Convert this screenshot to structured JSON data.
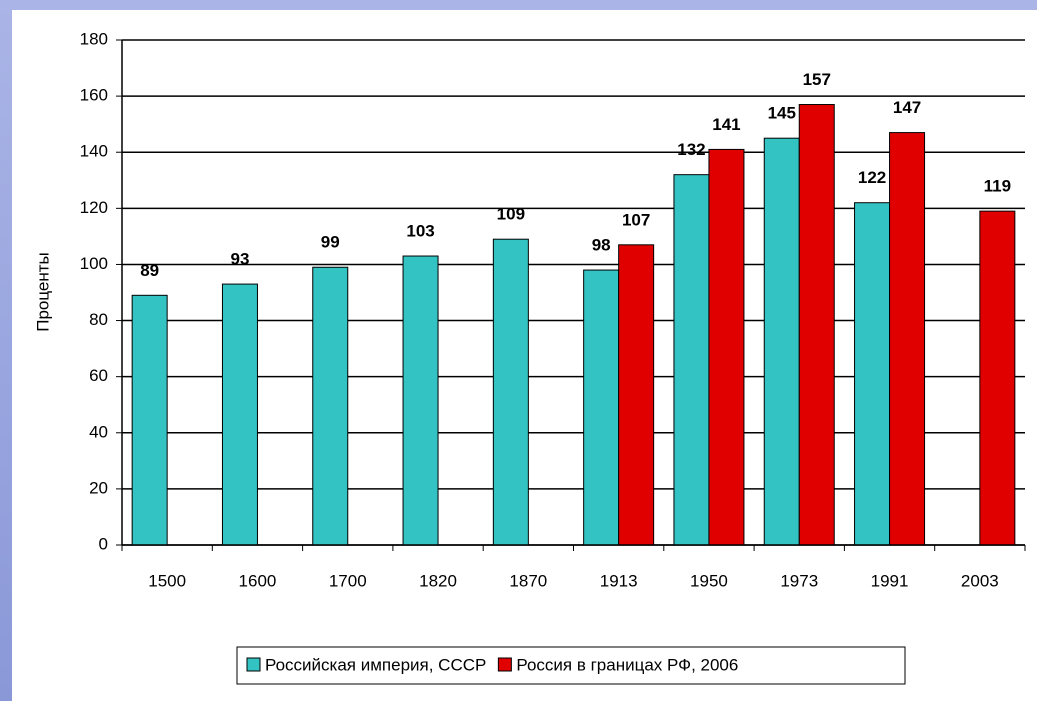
{
  "chart_data": {
    "type": "bar",
    "ylabel": "Проценты",
    "categories": [
      "1500",
      "1600",
      "1700",
      "1820",
      "1870",
      "1913",
      "1950",
      "1973",
      "1991",
      "2003"
    ],
    "series": [
      {
        "name": "Российская империя, СССР",
        "color": "#33c3c3",
        "values": [
          89,
          93,
          99,
          103,
          109,
          98,
          132,
          145,
          122,
          null
        ]
      },
      {
        "name": "Россия в границах РФ, 2006",
        "color": "#e00000",
        "values": [
          null,
          null,
          null,
          null,
          null,
          107,
          141,
          157,
          147,
          119
        ]
      }
    ],
    "ylim": [
      0,
      180
    ],
    "yticks": [
      0,
      20,
      40,
      60,
      80,
      100,
      120,
      140,
      160,
      180
    ],
    "grid": true,
    "legend": "bottom"
  }
}
